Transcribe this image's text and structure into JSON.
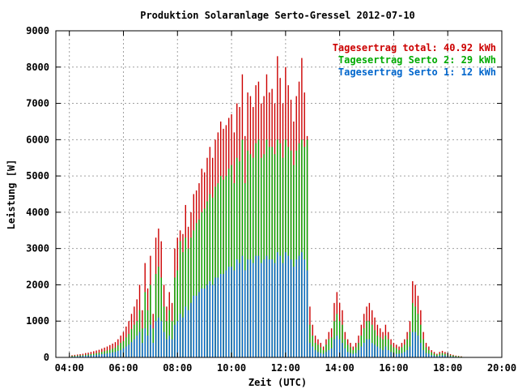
{
  "chart_data": {
    "type": "bar",
    "title": "Produktion Solaranlage Serto-Gressel 2012-07-10",
    "xlabel": "Zeit (UTC)",
    "ylabel": "Leistung [W]",
    "xlim": [
      3.5,
      20.0
    ],
    "ylim": [
      0,
      9000
    ],
    "x_ticks": [
      {
        "value": 4,
        "label": "04:00"
      },
      {
        "value": 6,
        "label": "06:00"
      },
      {
        "value": 8,
        "label": "08:00"
      },
      {
        "value": 10,
        "label": "10:00"
      },
      {
        "value": 12,
        "label": "12:00"
      },
      {
        "value": 14,
        "label": "14:00"
      },
      {
        "value": 16,
        "label": "16:00"
      },
      {
        "value": 18,
        "label": "18:00"
      },
      {
        "value": 20,
        "label": "20:00"
      }
    ],
    "y_ticks": [
      0,
      1000,
      2000,
      3000,
      4000,
      5000,
      6000,
      7000,
      8000,
      9000
    ],
    "grid": true,
    "legend_position": "top-right",
    "legend": [
      {
        "label": "Tagesertrag total: 40.92 kWh",
        "color": "#cc0000"
      },
      {
        "label": "Tagesertrag Serto 2: 29 kWh",
        "color": "#00aa00"
      },
      {
        "label": "Tagesertrag Serto 1: 12 kWh",
        "color": "#0066cc"
      }
    ],
    "series": [
      {
        "name": "Tagesertrag total",
        "color": "#cc0000"
      },
      {
        "name": "Tagesertrag Serto 2",
        "color": "#00aa00"
      },
      {
        "name": "Tagesertrag Serto 1",
        "color": "#0066cc"
      }
    ],
    "bar_width_hours": 0.042,
    "bars": [
      [
        4.1,
        60,
        40,
        20
      ],
      [
        4.2,
        70,
        45,
        25
      ],
      [
        4.3,
        80,
        50,
        30
      ],
      [
        4.4,
        90,
        55,
        35
      ],
      [
        4.5,
        100,
        60,
        40
      ],
      [
        4.6,
        120,
        70,
        45
      ],
      [
        4.7,
        130,
        80,
        50
      ],
      [
        4.8,
        150,
        90,
        55
      ],
      [
        4.9,
        170,
        100,
        60
      ],
      [
        5.0,
        190,
        115,
        70
      ],
      [
        5.1,
        210,
        130,
        80
      ],
      [
        5.2,
        240,
        150,
        90
      ],
      [
        5.3,
        270,
        170,
        100
      ],
      [
        5.4,
        300,
        190,
        110
      ],
      [
        5.5,
        340,
        210,
        120
      ],
      [
        5.6,
        380,
        240,
        140
      ],
      [
        5.7,
        420,
        270,
        150
      ],
      [
        5.8,
        500,
        330,
        180
      ],
      [
        5.9,
        600,
        400,
        200
      ],
      [
        6.0,
        700,
        450,
        250
      ],
      [
        6.1,
        850,
        550,
        300
      ],
      [
        6.2,
        1000,
        650,
        350
      ],
      [
        6.3,
        1200,
        780,
        420
      ],
      [
        6.4,
        1400,
        900,
        500
      ],
      [
        6.5,
        1600,
        1000,
        600
      ],
      [
        6.6,
        2000,
        1300,
        700
      ],
      [
        6.7,
        1300,
        800,
        400
      ],
      [
        6.8,
        2600,
        1800,
        800
      ],
      [
        6.9,
        1900,
        1300,
        600
      ],
      [
        7.0,
        2800,
        2000,
        900
      ],
      [
        7.1,
        1200,
        800,
        400
      ],
      [
        7.2,
        3300,
        2300,
        1000
      ],
      [
        7.3,
        3550,
        2500,
        1100
      ],
      [
        7.4,
        3200,
        2200,
        1000
      ],
      [
        7.5,
        2000,
        1400,
        700
      ],
      [
        7.6,
        1400,
        1000,
        500
      ],
      [
        7.7,
        1800,
        1300,
        600
      ],
      [
        7.8,
        1500,
        1000,
        500
      ],
      [
        7.9,
        3000,
        2200,
        900
      ],
      [
        8.0,
        3300,
        2400,
        1000
      ],
      [
        8.1,
        3500,
        3200,
        1200
      ],
      [
        8.2,
        3400,
        2900,
        1100
      ],
      [
        8.3,
        4200,
        3300,
        1400
      ],
      [
        8.4,
        3600,
        3000,
        1300
      ],
      [
        8.5,
        4000,
        3300,
        1500
      ],
      [
        8.6,
        4500,
        3500,
        1700
      ],
      [
        8.7,
        4600,
        3700,
        1700
      ],
      [
        8.8,
        4800,
        3800,
        1800
      ],
      [
        8.9,
        5200,
        4000,
        1900
      ],
      [
        9.0,
        5100,
        4100,
        1900
      ],
      [
        9.1,
        5500,
        4300,
        2000
      ],
      [
        9.2,
        5800,
        4500,
        2100
      ],
      [
        9.3,
        5500,
        4400,
        2000
      ],
      [
        9.4,
        6000,
        4700,
        2200
      ],
      [
        9.5,
        6200,
        4800,
        2200
      ],
      [
        9.6,
        6500,
        5000,
        2300
      ],
      [
        9.7,
        6300,
        4900,
        2300
      ],
      [
        9.8,
        6400,
        5000,
        2400
      ],
      [
        9.9,
        6600,
        5200,
        2500
      ],
      [
        10.0,
        6700,
        5300,
        2500
      ],
      [
        10.1,
        6200,
        4800,
        2400
      ],
      [
        10.2,
        7000,
        5500,
        2700
      ],
      [
        10.3,
        6900,
        5400,
        2600
      ],
      [
        10.4,
        7800,
        6000,
        2800
      ],
      [
        10.5,
        6100,
        4800,
        2400
      ],
      [
        10.6,
        7300,
        5700,
        2700
      ],
      [
        10.7,
        7200,
        5600,
        2700
      ],
      [
        10.8,
        6900,
        5500,
        2600
      ],
      [
        10.9,
        7500,
        5900,
        2800
      ],
      [
        11.0,
        7600,
        6000,
        2800
      ],
      [
        11.1,
        7000,
        5500,
        2600
      ],
      [
        11.2,
        7200,
        5600,
        2700
      ],
      [
        11.3,
        7800,
        6000,
        2800
      ],
      [
        11.4,
        7300,
        5800,
        2700
      ],
      [
        11.5,
        7400,
        5800,
        2700
      ],
      [
        11.6,
        7000,
        5600,
        2600
      ],
      [
        11.7,
        8300,
        6000,
        2900
      ],
      [
        11.8,
        7700,
        5900,
        2800
      ],
      [
        11.9,
        7000,
        5500,
        2600
      ],
      [
        12.0,
        8000,
        6000,
        2900
      ],
      [
        12.1,
        7500,
        5800,
        2800
      ],
      [
        12.2,
        7100,
        5700,
        2700
      ],
      [
        12.3,
        6500,
        5300,
        2500
      ],
      [
        12.4,
        7200,
        5700,
        2700
      ],
      [
        12.5,
        7600,
        5900,
        2800
      ],
      [
        12.6,
        8250,
        6000,
        2900
      ],
      [
        12.7,
        7300,
        5800,
        2700
      ],
      [
        12.8,
        6100,
        6000,
        2400
      ],
      [
        12.9,
        1400,
        900,
        400
      ],
      [
        13.0,
        900,
        600,
        300
      ],
      [
        13.1,
        600,
        400,
        200
      ],
      [
        13.2,
        500,
        350,
        150
      ],
      [
        13.3,
        400,
        280,
        120
      ],
      [
        13.4,
        300,
        200,
        100
      ],
      [
        13.5,
        500,
        350,
        150
      ],
      [
        13.6,
        700,
        500,
        200
      ],
      [
        13.7,
        800,
        550,
        250
      ],
      [
        13.8,
        1500,
        1000,
        500
      ],
      [
        13.9,
        1800,
        1200,
        600
      ],
      [
        14.0,
        1500,
        1000,
        500
      ],
      [
        14.1,
        1300,
        900,
        400
      ],
      [
        14.2,
        700,
        500,
        250
      ],
      [
        14.3,
        500,
        350,
        150
      ],
      [
        14.4,
        400,
        280,
        120
      ],
      [
        14.5,
        300,
        200,
        100
      ],
      [
        14.6,
        400,
        280,
        120
      ],
      [
        14.7,
        600,
        400,
        200
      ],
      [
        14.8,
        900,
        600,
        300
      ],
      [
        14.9,
        1200,
        800,
        400
      ],
      [
        15.0,
        1400,
        1000,
        500
      ],
      [
        15.1,
        1500,
        1000,
        500
      ],
      [
        15.2,
        1300,
        900,
        400
      ],
      [
        15.3,
        1100,
        750,
        350
      ],
      [
        15.4,
        900,
        600,
        300
      ],
      [
        15.5,
        800,
        550,
        250
      ],
      [
        15.6,
        700,
        500,
        200
      ],
      [
        15.7,
        900,
        600,
        300
      ],
      [
        15.8,
        700,
        500,
        200
      ],
      [
        15.9,
        500,
        350,
        150
      ],
      [
        16.0,
        400,
        280,
        120
      ],
      [
        16.1,
        350,
        250,
        100
      ],
      [
        16.2,
        300,
        200,
        100
      ],
      [
        16.3,
        400,
        280,
        120
      ],
      [
        16.4,
        500,
        350,
        150
      ],
      [
        16.5,
        700,
        500,
        200
      ],
      [
        16.6,
        1000,
        700,
        300
      ],
      [
        16.7,
        2100,
        1500,
        700
      ],
      [
        16.8,
        2000,
        1400,
        700
      ],
      [
        16.9,
        1700,
        1200,
        600
      ],
      [
        17.0,
        1300,
        900,
        400
      ],
      [
        17.1,
        700,
        500,
        200
      ],
      [
        17.2,
        400,
        280,
        120
      ],
      [
        17.3,
        300,
        200,
        100
      ],
      [
        17.4,
        200,
        140,
        60
      ],
      [
        17.5,
        150,
        100,
        50
      ],
      [
        17.6,
        100,
        70,
        30
      ],
      [
        17.7,
        150,
        100,
        50
      ],
      [
        17.8,
        180,
        120,
        60
      ],
      [
        17.9,
        150,
        100,
        50
      ],
      [
        18.0,
        120,
        80,
        40
      ],
      [
        18.1,
        90,
        60,
        30
      ],
      [
        18.2,
        70,
        50,
        20
      ],
      [
        18.3,
        50,
        35,
        15
      ],
      [
        18.4,
        40,
        30,
        10
      ],
      [
        18.5,
        30,
        20,
        10
      ]
    ]
  }
}
